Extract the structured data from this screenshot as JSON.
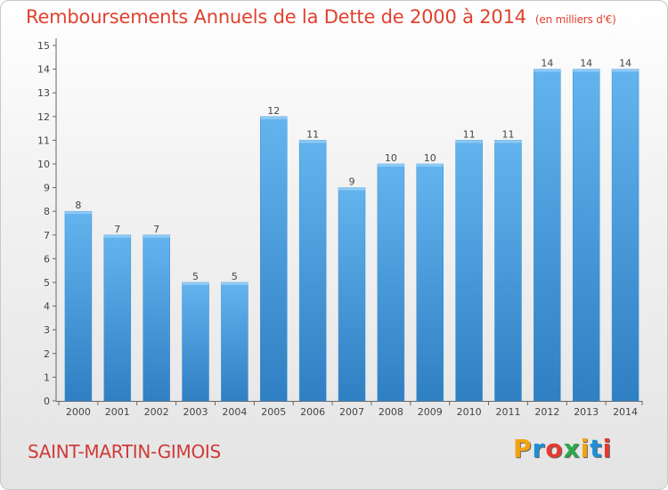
{
  "chart_data": {
    "type": "bar",
    "title": "Remboursements Annuels de la Dette de 2000 à 2014",
    "unit": "(en milliers d'€)",
    "categories": [
      "2000",
      "2001",
      "2002",
      "2003",
      "2004",
      "2005",
      "2006",
      "2007",
      "2008",
      "2009",
      "2010",
      "2011",
      "2012",
      "2013",
      "2014"
    ],
    "values": [
      8,
      7,
      7,
      5,
      5,
      12,
      11,
      9,
      10,
      10,
      11,
      11,
      14,
      14,
      14
    ],
    "y_ticks": [
      0,
      1,
      2,
      3,
      4,
      5,
      6,
      7,
      8,
      9,
      10,
      11,
      12,
      13,
      14,
      15
    ],
    "ylim": [
      0,
      15
    ],
    "grid": false,
    "bar_color": "#4ea3e3"
  },
  "footer": {
    "commune": "SAINT-MARTIN-GIMOIS",
    "logo_text": "Proxiti",
    "logo_colors": [
      "#f2a30f",
      "#1e8fd8",
      "#e53a2d",
      "#2aa84a",
      "#f2a30f",
      "#1e8fd8",
      "#e53a2d"
    ]
  }
}
